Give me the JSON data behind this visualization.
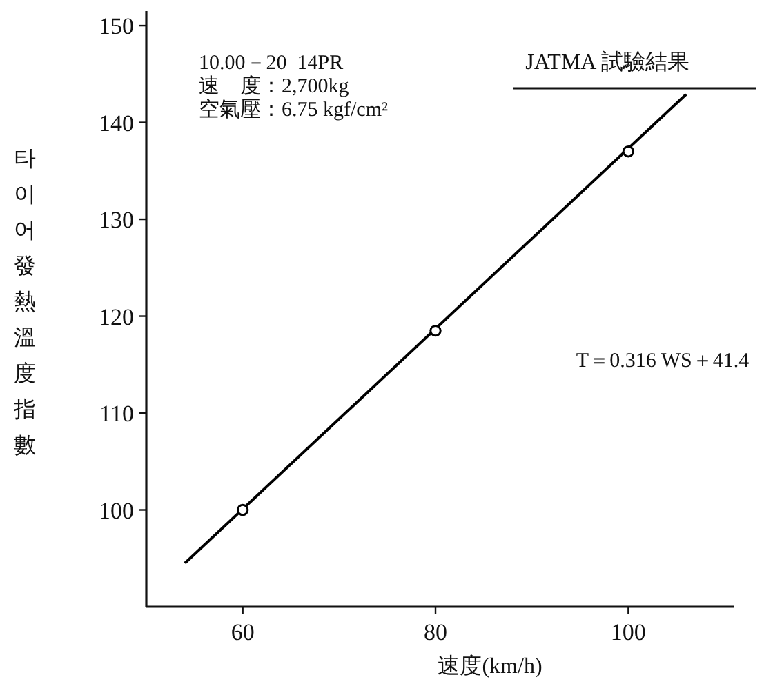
{
  "chart_data": {
    "type": "line",
    "title": "JATMA 試驗結果",
    "xlabel": "速度(km/h)",
    "ylabel": "타이어發熱溫度指數",
    "annotations": [
      "10.00－20  14PR",
      "速　度：2,700kg",
      "空氣壓：6.75 kgf/cm²",
      "T＝0.316 WS＋41.4"
    ],
    "xlim": [
      50,
      111
    ],
    "ylim": [
      90,
      151.5
    ],
    "xticks": [
      60,
      80,
      100
    ],
    "yticks": [
      100,
      110,
      120,
      130,
      140,
      150
    ],
    "series": [
      {
        "type": "line",
        "color": "#000000",
        "x": [
          54,
          106
        ],
        "values": [
          94.5,
          142.9
        ],
        "marker": "none"
      },
      {
        "type": "scatter",
        "color": "#000000",
        "x": [
          60,
          80,
          100
        ],
        "values": [
          100,
          118.5,
          137
        ],
        "marker": "circle"
      }
    ]
  }
}
